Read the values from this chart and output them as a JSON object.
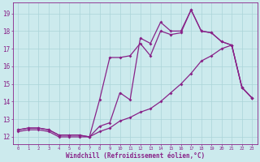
{
  "bg_color": "#cceaed",
  "grid_color": "#aad4d8",
  "line_color": "#882288",
  "marker": "D",
  "marker_size": 2.0,
  "line_width": 0.9,
  "xlabel": "Windchill (Refroidissement éolien,°C)",
  "xlim": [
    -0.5,
    23.5
  ],
  "ylim": [
    11.6,
    19.6
  ],
  "xticks": [
    0,
    1,
    2,
    3,
    4,
    5,
    6,
    7,
    8,
    9,
    10,
    11,
    12,
    13,
    14,
    15,
    16,
    17,
    18,
    19,
    20,
    21,
    22,
    23
  ],
  "yticks": [
    12,
    13,
    14,
    15,
    16,
    17,
    18,
    19
  ],
  "series1_x": [
    0,
    1,
    2,
    3,
    4,
    5,
    6,
    7,
    8,
    9,
    10,
    11,
    12,
    13,
    14,
    15,
    16,
    17,
    18,
    19,
    20,
    21,
    22,
    23
  ],
  "series1_y": [
    12.4,
    12.5,
    12.5,
    12.4,
    12.1,
    12.1,
    12.1,
    12.0,
    12.6,
    12.8,
    14.5,
    14.1,
    17.6,
    17.3,
    18.5,
    18.0,
    18.0,
    19.2,
    18.0,
    17.9,
    17.4,
    17.2,
    14.8,
    14.2
  ],
  "series2_x": [
    0,
    1,
    2,
    3,
    4,
    5,
    6,
    7,
    8,
    9,
    10,
    11,
    12,
    13,
    14,
    15,
    16,
    17,
    18,
    19,
    20,
    21,
    22,
    23
  ],
  "series2_y": [
    12.4,
    12.5,
    12.5,
    12.4,
    12.1,
    12.1,
    12.1,
    12.0,
    14.1,
    16.5,
    16.5,
    16.6,
    17.3,
    16.6,
    18.0,
    17.8,
    17.9,
    19.2,
    18.0,
    17.9,
    17.4,
    17.2,
    14.8,
    14.2
  ],
  "series3_x": [
    0,
    1,
    2,
    3,
    4,
    5,
    6,
    7,
    8,
    9,
    10,
    11,
    12,
    13,
    14,
    15,
    16,
    17,
    18,
    19,
    20,
    21,
    22,
    23
  ],
  "series3_y": [
    12.3,
    12.4,
    12.4,
    12.3,
    12.0,
    12.0,
    12.0,
    12.0,
    12.3,
    12.5,
    12.9,
    13.1,
    13.4,
    13.6,
    14.0,
    14.5,
    15.0,
    15.6,
    16.3,
    16.6,
    17.0,
    17.2,
    14.8,
    14.2
  ]
}
